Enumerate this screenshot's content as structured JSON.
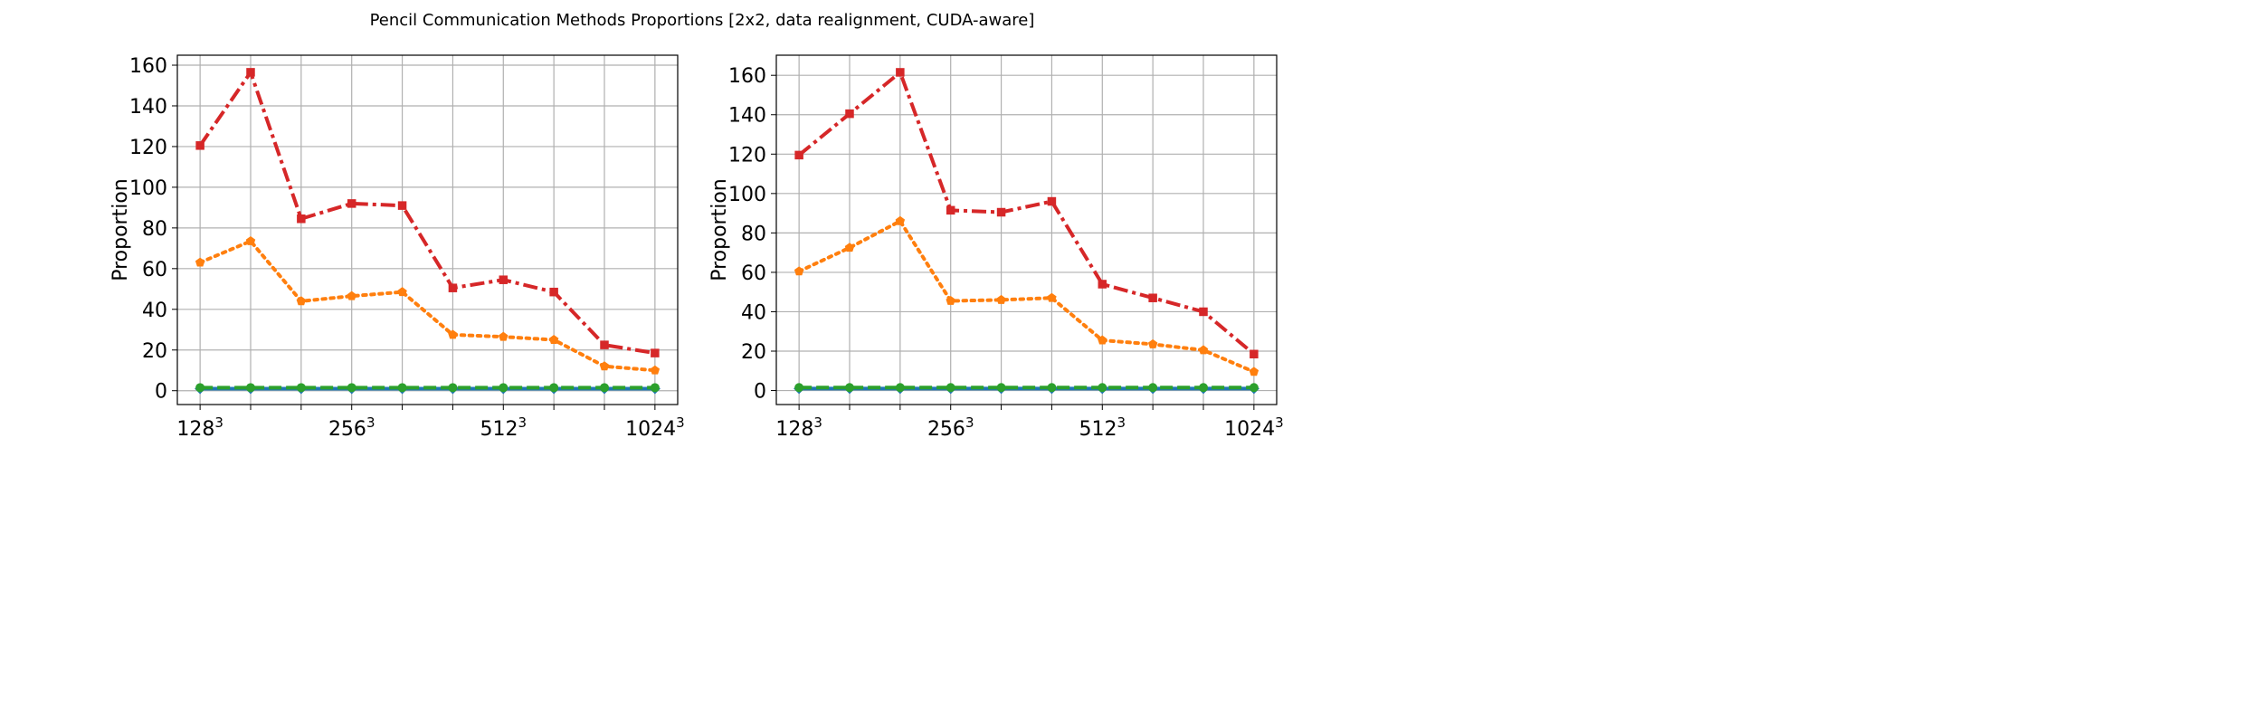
{
  "figure_title": "Pencil Communication Methods Proportions [2x2, data realignment, CUDA-aware]",
  "chart_data": [
    {
      "type": "line",
      "ylabel": "Proportion",
      "xlabel": "",
      "x": [
        0,
        1,
        2,
        3,
        4,
        5,
        6,
        7,
        8,
        9
      ],
      "xticks": [
        0,
        3,
        6,
        9
      ],
      "xticklabels": [
        {
          "base": "128",
          "sup": "3"
        },
        {
          "base": "256",
          "sup": "3"
        },
        {
          "base": "512",
          "sup": "3"
        },
        {
          "base": "1024",
          "sup": "3"
        }
      ],
      "yticks": [
        0,
        20,
        40,
        60,
        80,
        100,
        120,
        140,
        160
      ],
      "ylim": [
        -6.8,
        164.9
      ],
      "xlim": [
        -0.45,
        9.45
      ],
      "grid": true,
      "series": [
        {
          "color": "#d62728",
          "linestyle": "dashdot",
          "marker": "square",
          "values": [
            120.5,
            156.5,
            84.5,
            92,
            91,
            50.5,
            54.5,
            48.5,
            22.5,
            18.5
          ]
        },
        {
          "color": "#ff7f0e",
          "linestyle": "dotted",
          "marker": "pentagon",
          "values": [
            63,
            73.5,
            44,
            46.5,
            48.5,
            27.5,
            26.5,
            25,
            12,
            10
          ]
        },
        {
          "color": "#2ca02c",
          "linestyle": "dashed",
          "marker": "circle",
          "values": [
            1.5,
            1.5,
            1.5,
            1.5,
            1.5,
            1.5,
            1.5,
            1.5,
            1.5,
            1.5
          ]
        },
        {
          "color": "#1f77b4",
          "linestyle": "solid",
          "marker": "diamond",
          "values": [
            1,
            1,
            1,
            1,
            1,
            1,
            1,
            1,
            1,
            1
          ]
        }
      ]
    },
    {
      "type": "line",
      "ylabel": "Proportion",
      "xlabel": "",
      "x": [
        0,
        1,
        2,
        3,
        4,
        5,
        6,
        7,
        8,
        9
      ],
      "xticks": [
        0,
        3,
        6,
        9
      ],
      "xticklabels": [
        {
          "base": "128",
          "sup": "3"
        },
        {
          "base": "256",
          "sup": "3"
        },
        {
          "base": "512",
          "sup": "3"
        },
        {
          "base": "1024",
          "sup": "3"
        }
      ],
      "yticks": [
        0,
        20,
        40,
        60,
        80,
        100,
        120,
        140,
        160
      ],
      "ylim": [
        -7.1,
        170.2
      ],
      "xlim": [
        -0.45,
        9.45
      ],
      "grid": true,
      "series": [
        {
          "color": "#d62728",
          "linestyle": "dashdot",
          "marker": "square",
          "values": [
            119.5,
            140.5,
            161.5,
            91.5,
            90.5,
            96,
            54,
            47,
            40,
            18.5
          ]
        },
        {
          "color": "#ff7f0e",
          "linestyle": "dotted",
          "marker": "pentagon",
          "values": [
            60.5,
            72.5,
            86,
            45.5,
            46,
            47,
            25.5,
            23.5,
            20.5,
            9.5
          ]
        },
        {
          "color": "#2ca02c",
          "linestyle": "dashed",
          "marker": "circle",
          "values": [
            1.5,
            1.5,
            1.5,
            1.5,
            1.5,
            1.5,
            1.5,
            1.5,
            1.5,
            1.5
          ]
        },
        {
          "color": "#1f77b4",
          "linestyle": "solid",
          "marker": "diamond",
          "values": [
            1,
            1,
            1,
            1,
            1,
            1,
            1,
            1,
            1,
            1
          ]
        }
      ]
    }
  ]
}
